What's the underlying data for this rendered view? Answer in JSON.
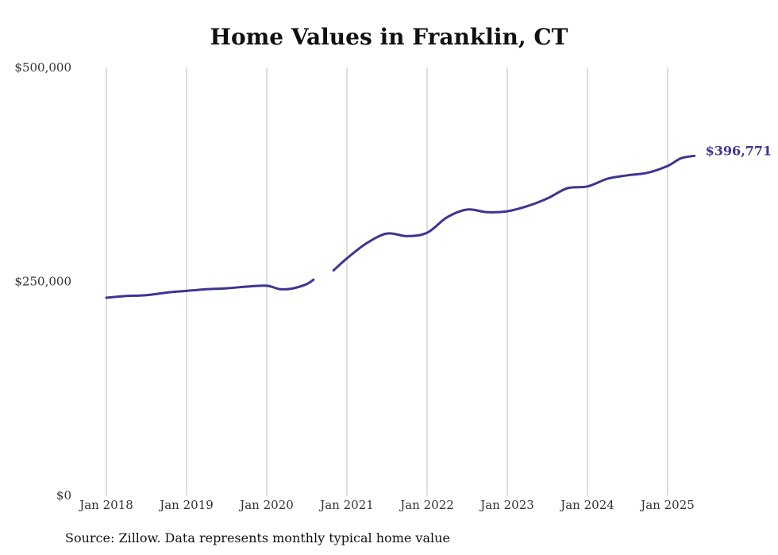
{
  "chart_data": {
    "type": "line",
    "title": "Home Values in Franklin, CT",
    "xlabel": "",
    "ylabel": "",
    "source": "Source: Zillow. Data represents monthly typical home value",
    "x_ticks": [
      "Jan 2018",
      "Jan 2019",
      "Jan 2020",
      "Jan 2021",
      "Jan 2022",
      "Jan 2023",
      "Jan 2024",
      "Jan 2025"
    ],
    "y_ticks": [
      "$0",
      "$250,000",
      "$500,000"
    ],
    "ylim": [
      0,
      500000
    ],
    "xlim": [
      "2018-01",
      "2025-05"
    ],
    "grid": "vertical",
    "line_color": "#3d3590",
    "end_label": "$396,771",
    "series": [
      {
        "values": [
          [
            "2018-01",
            231000
          ],
          [
            "2018-04",
            233000
          ],
          [
            "2018-07",
            234000
          ],
          [
            "2018-10",
            237000
          ],
          [
            "2019-01",
            239000
          ],
          [
            "2019-04",
            241000
          ],
          [
            "2019-07",
            242000
          ],
          [
            "2019-10",
            244000
          ],
          [
            "2020-01",
            245000
          ],
          [
            "2020-03",
            241000
          ],
          [
            "2020-05",
            242000
          ],
          [
            "2020-07",
            247000
          ],
          [
            "2020-08",
            252000
          ],
          [
            "2020-09",
            null
          ],
          [
            "2020-11",
            263000
          ],
          [
            "2021-01",
            277000
          ],
          [
            "2021-04",
            295000
          ],
          [
            "2021-07",
            306000
          ],
          [
            "2021-10",
            303000
          ],
          [
            "2022-01",
            307000
          ],
          [
            "2022-04",
            325000
          ],
          [
            "2022-07",
            334000
          ],
          [
            "2022-10",
            331000
          ],
          [
            "2023-01",
            332000
          ],
          [
            "2023-04",
            338000
          ],
          [
            "2023-07",
            347000
          ],
          [
            "2023-10",
            359000
          ],
          [
            "2024-01",
            361000
          ],
          [
            "2024-04",
            370000
          ],
          [
            "2024-07",
            374000
          ],
          [
            "2024-10",
            377000
          ],
          [
            "2025-01",
            385000
          ],
          [
            "2025-03",
            394000
          ],
          [
            "2025-05",
            396771
          ]
        ]
      }
    ]
  }
}
